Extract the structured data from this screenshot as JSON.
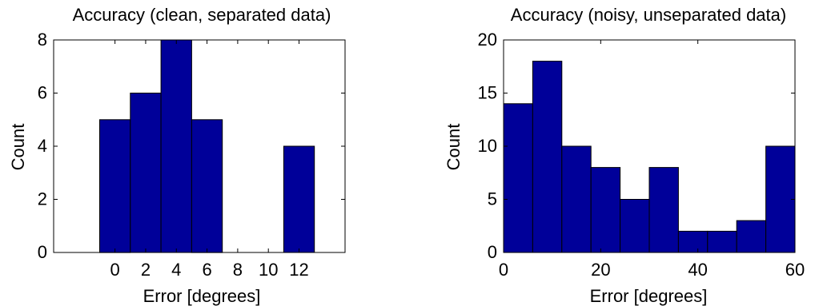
{
  "colors": {
    "bar_fill": "#000099",
    "bar_edge": "#000000",
    "axis": "#000000",
    "background": "#ffffff"
  },
  "chart_data": [
    {
      "type": "bar",
      "title": "Accuracy (clean, separated data)",
      "xlabel": "Error [degrees]",
      "ylabel": "Count",
      "xlim": [
        -4,
        15
      ],
      "ylim": [
        0,
        8
      ],
      "xticks": [
        0,
        2,
        4,
        6,
        8,
        10,
        12
      ],
      "yticks": [
        0,
        2,
        4,
        6,
        8
      ],
      "bin_width": 2,
      "bins": [
        {
          "center": 0,
          "count": 5
        },
        {
          "center": 2,
          "count": 6
        },
        {
          "center": 4,
          "count": 8
        },
        {
          "center": 6,
          "count": 5
        },
        {
          "center": 8,
          "count": 0
        },
        {
          "center": 10,
          "count": 0
        },
        {
          "center": 12,
          "count": 4
        }
      ],
      "grid": false,
      "box": true
    },
    {
      "type": "bar",
      "title": "Accuracy (noisy, unseparated data)",
      "xlabel": "Error [degrees]",
      "ylabel": "Count",
      "xlim": [
        0,
        60
      ],
      "ylim": [
        0,
        20
      ],
      "xticks": [
        0,
        20,
        40,
        60
      ],
      "yticks": [
        0,
        5,
        10,
        15,
        20
      ],
      "bin_width": 6,
      "bins": [
        {
          "center": 3,
          "count": 14
        },
        {
          "center": 9,
          "count": 18
        },
        {
          "center": 15,
          "count": 10
        },
        {
          "center": 21,
          "count": 8
        },
        {
          "center": 27,
          "count": 5
        },
        {
          "center": 33,
          "count": 8
        },
        {
          "center": 39,
          "count": 2
        },
        {
          "center": 45,
          "count": 2
        },
        {
          "center": 51,
          "count": 3
        },
        {
          "center": 57,
          "count": 10
        }
      ],
      "grid": false,
      "box": true
    }
  ]
}
